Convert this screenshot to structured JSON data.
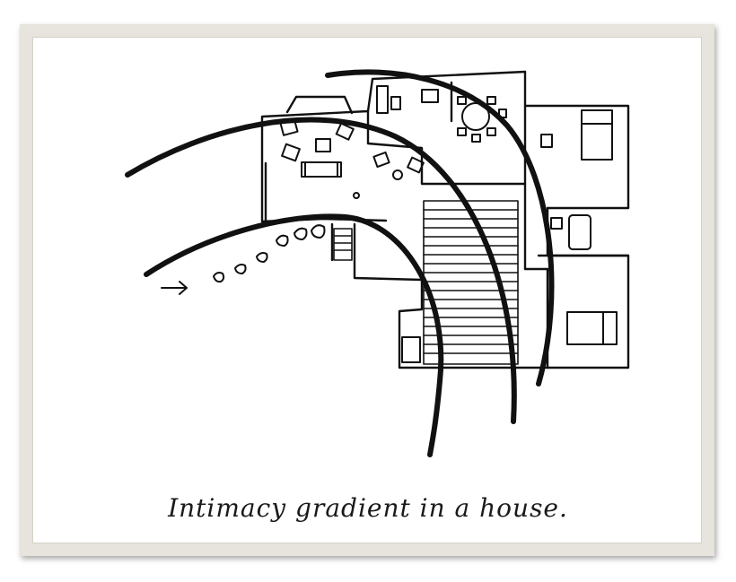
{
  "figure": {
    "caption": "Intimacy gradient in a house.",
    "ink_color": "#111111",
    "frame_color": "#e6e4dc"
  },
  "diagram": {
    "gradient_arcs": [
      {
        "name": "outer-public-arc"
      },
      {
        "name": "middle-arc"
      },
      {
        "name": "inner-private-arc"
      }
    ],
    "entry_arrow": {
      "name": "entry-arrow"
    }
  }
}
